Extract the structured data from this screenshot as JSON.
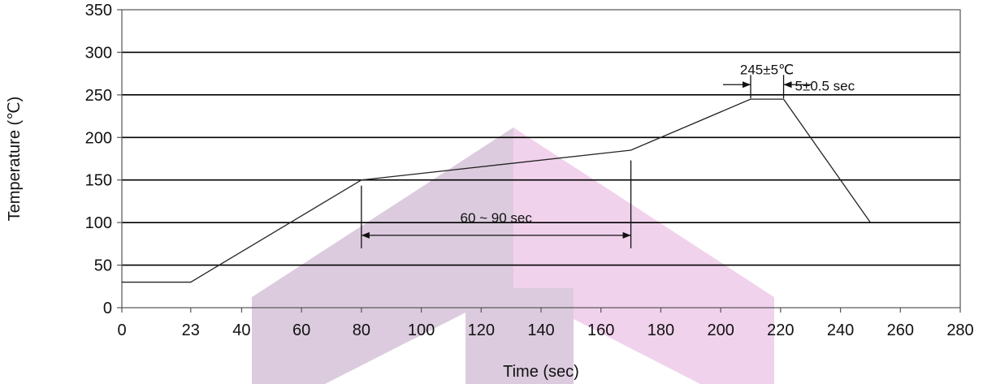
{
  "colors": {
    "watermark_light": "#f1d2ec",
    "watermark_dark": "#dccbde",
    "grid": "#000000",
    "line": "#222222"
  },
  "chart_data": {
    "type": "line",
    "title": "",
    "xlabel": "Time (sec)",
    "ylabel": "Temperature (℃)",
    "xlim": [
      0,
      280
    ],
    "ylim": [
      0,
      350
    ],
    "x_ticks": [
      0,
      23,
      40,
      60,
      80,
      100,
      120,
      140,
      160,
      180,
      200,
      220,
      240,
      260,
      280
    ],
    "y_ticks": [
      0,
      50,
      100,
      150,
      200,
      250,
      300,
      350
    ],
    "grid": "horizontal",
    "series": [
      {
        "x": [
          0,
          23,
          80,
          170,
          210,
          221,
          250
        ],
        "y": [
          30,
          30,
          150,
          185,
          245,
          245,
          100
        ]
      }
    ],
    "annotations": {
      "soak": {
        "label": "60 ~ 90 sec",
        "x_start": 80,
        "x_end": 170,
        "y": 85
      },
      "peak_temp": {
        "label": "245±5℃",
        "x": 210,
        "y": 280
      },
      "peak_time": {
        "label": "5±0.5 sec",
        "x_start": 210,
        "x_end": 221,
        "y": 262
      }
    }
  }
}
